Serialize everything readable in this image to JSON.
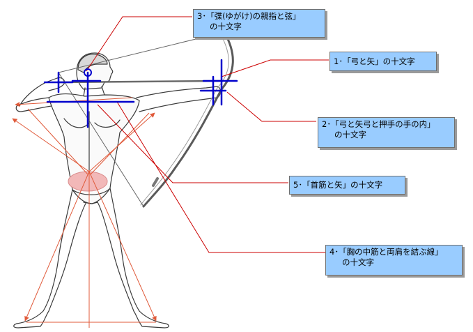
{
  "callouts": {
    "c1": {
      "line1": "1･「弓と矢」の十文字"
    },
    "c2": {
      "line1": "2･「弓と矢弓と押手の手の内」",
      "line2": "の十文字"
    },
    "c3": {
      "line1": "3･「弽(ゆがけ)の親指と弦」",
      "line2": "の十文字"
    },
    "c4": {
      "line1": "4･「胸の中筋と両肩を結ぶ線」",
      "line2": "の十文字"
    },
    "c5": {
      "line1": "5･「首筋と矢」の十文字"
    }
  },
  "colors": {
    "callout_fill": "#99ccff",
    "leader_line": "#cc0000",
    "cross_marks": "#0000cc",
    "guide_arrows": "#e05a3a",
    "hara_ellipse": "#f2b8b8",
    "figure_outline": "#3a3a3a"
  }
}
